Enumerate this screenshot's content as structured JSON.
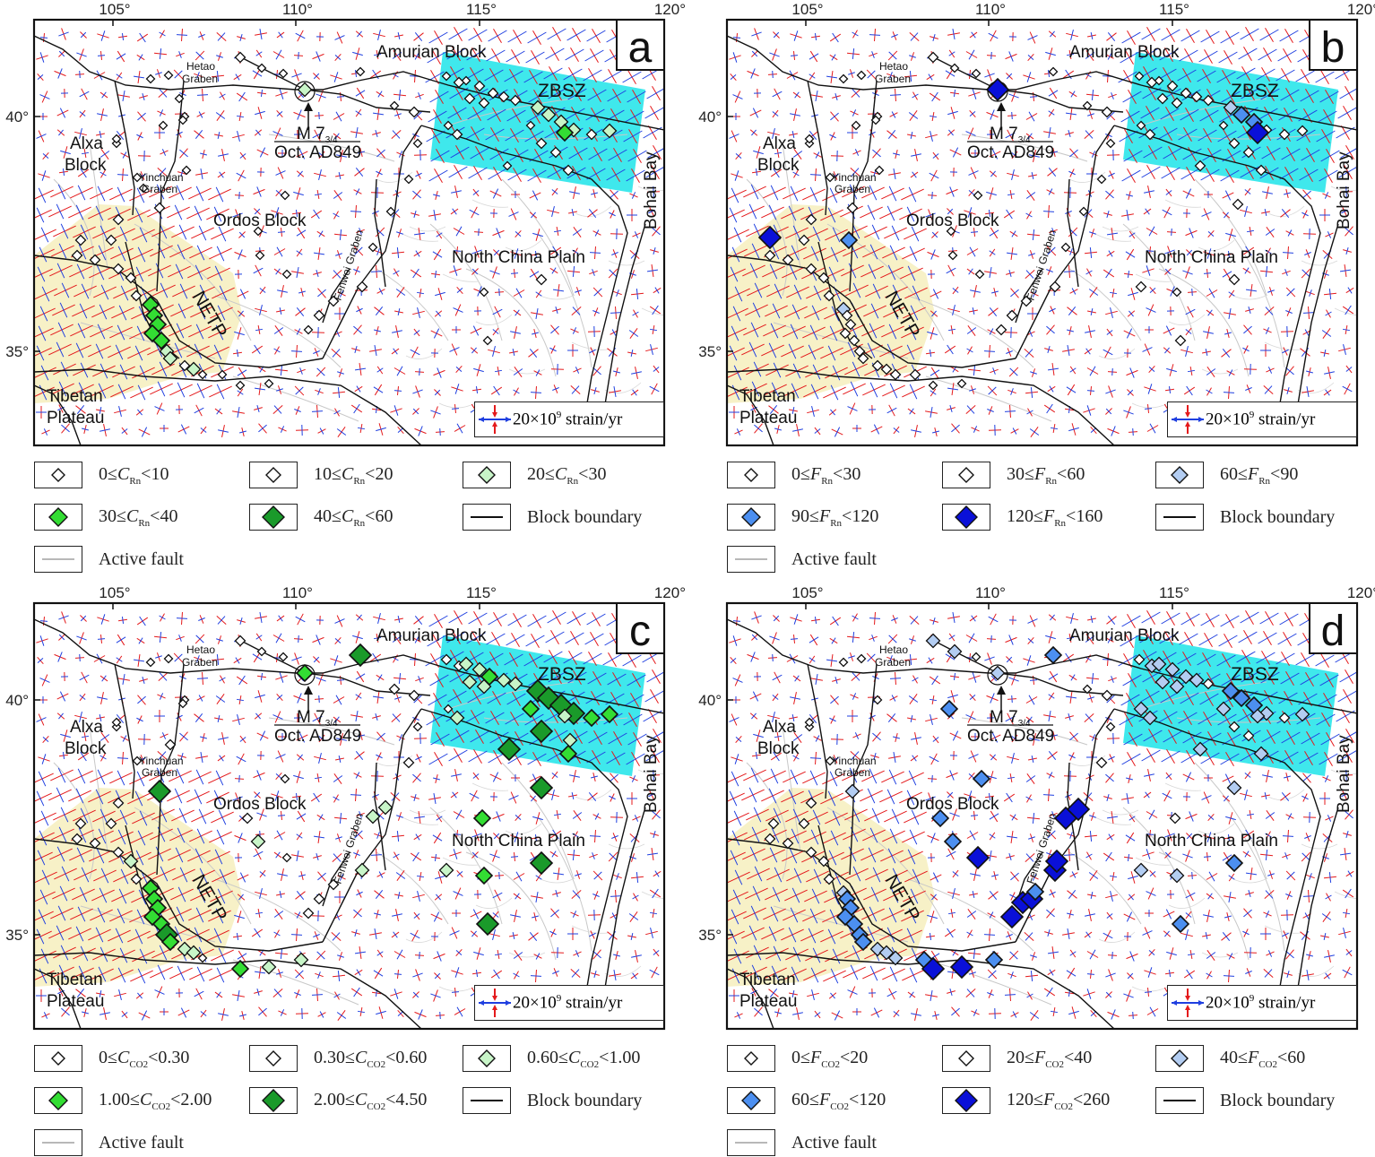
{
  "panels": [
    {
      "letter": "a",
      "scheme": "green",
      "leg": [
        {
          "pre": "0≤",
          "var": "C",
          "sub": "Rn",
          "post": "<10",
          "size": 7,
          "fill": "#ffffff"
        },
        {
          "pre": "10≤",
          "var": "C",
          "sub": "Rn",
          "post": "<20",
          "size": 8,
          "fill": "#ffffff"
        },
        {
          "pre": "20≤",
          "var": "C",
          "sub": "Rn",
          "post": "<30",
          "size": 9,
          "fill": "#c8f5c8"
        },
        {
          "pre": "30≤",
          "var": "C",
          "sub": "Rn",
          "post": "<40",
          "size": 10,
          "fill": "#33dd33"
        },
        {
          "pre": "40≤",
          "var": "C",
          "sub": "Rn",
          "post": "<60",
          "size": 12,
          "fill": "#1a9a2a"
        }
      ]
    },
    {
      "letter": "b",
      "scheme": "blue",
      "leg": [
        {
          "pre": "0≤",
          "var": "F",
          "sub": "Rn",
          "post": "<30",
          "size": 7,
          "fill": "#ffffff"
        },
        {
          "pre": "30≤",
          "var": "F",
          "sub": "Rn",
          "post": "<60",
          "size": 8,
          "fill": "#ffffff"
        },
        {
          "pre": "60≤",
          "var": "F",
          "sub": "Rn",
          "post": "<90",
          "size": 9,
          "fill": "#b3cdf2"
        },
        {
          "pre": "90≤",
          "var": "F",
          "sub": "Rn",
          "post": "<120",
          "size": 10,
          "fill": "#4c8ff0"
        },
        {
          "pre": "120≤",
          "var": "F",
          "sub": "Rn",
          "post": "<160",
          "size": 12,
          "fill": "#0a10d8"
        }
      ]
    },
    {
      "letter": "c",
      "scheme": "green",
      "leg": [
        {
          "pre": "0≤",
          "var": "C",
          "sub": "CO2",
          "post": "<0.30",
          "size": 7,
          "fill": "#ffffff"
        },
        {
          "pre": "0.30≤",
          "var": "C",
          "sub": "CO2",
          "post": "<0.60",
          "size": 8,
          "fill": "#ffffff"
        },
        {
          "pre": "0.60≤",
          "var": "C",
          "sub": "CO2",
          "post": "<1.00",
          "size": 9,
          "fill": "#c8f5c8"
        },
        {
          "pre": "1.00≤",
          "var": "C",
          "sub": "CO2",
          "post": "<2.00",
          "size": 10,
          "fill": "#33dd33"
        },
        {
          "pre": "2.00≤",
          "var": "C",
          "sub": "CO2",
          "post": "<4.50",
          "size": 12,
          "fill": "#1a9a2a"
        }
      ]
    },
    {
      "letter": "d",
      "scheme": "blue",
      "leg": [
        {
          "pre": "0≤",
          "var": "F",
          "sub": "CO2",
          "post": "<20",
          "size": 7,
          "fill": "#ffffff"
        },
        {
          "pre": "20≤",
          "var": "F",
          "sub": "CO2",
          "post": "<40",
          "size": 8,
          "fill": "#ffffff"
        },
        {
          "pre": "40≤",
          "var": "F",
          "sub": "CO2",
          "post": "<60",
          "size": 9,
          "fill": "#b3cdf2"
        },
        {
          "pre": "60≤",
          "var": "F",
          "sub": "CO2",
          "post": "<120",
          "size": 10,
          "fill": "#4c8ff0"
        },
        {
          "pre": "120≤",
          "var": "F",
          "sub": "CO2",
          "post": "<260",
          "size": 12,
          "fill": "#0a10d8"
        }
      ]
    }
  ],
  "common": {
    "lon_ticks": [
      "105°",
      "110°",
      "115°",
      "120°"
    ],
    "lat_ticks": [
      "40°",
      "35°"
    ],
    "labels": {
      "amurian": "Amurian Block",
      "zbsz": "ZBSZ",
      "hetao1": "Hetao",
      "hetao2": "Graben",
      "alxa1": "Alxa",
      "alxa2": "Block",
      "yinchuan1": "Yinchuan",
      "yinchuan2": "Graben",
      "ordos": "Ordos Block",
      "ncp": "North China Plain",
      "netp": "NETP",
      "fenwei": "Fenwei Graben",
      "tibetan1": "Tibetan",
      "tibetan2": "Plateau",
      "bohai": "Bohai Bay",
      "eq_mag": "M 7",
      "eq_mag_sub": "3/4",
      "eq_date": "Oct. AD849"
    },
    "scale_text": "20×10",
    "scale_exp": "9",
    "scale_unit": " strain/yr",
    "block_boundary": "Block boundary",
    "active_fault": "Active fault"
  },
  "colors": {
    "zbsz_fill": "#3fe8ec",
    "netp_fill": "#f7f1c7",
    "strain_red": "#e41a1c",
    "strain_blue": "#1f3fe0",
    "green_scheme": [
      "#ffffff",
      "#ffffff",
      "#c8f5c8",
      "#33dd33",
      "#1a9a2a"
    ],
    "blue_scheme": [
      "#ffffff",
      "#ffffff",
      "#b3cdf2",
      "#4c8ff0",
      "#0a10d8"
    ]
  }
}
